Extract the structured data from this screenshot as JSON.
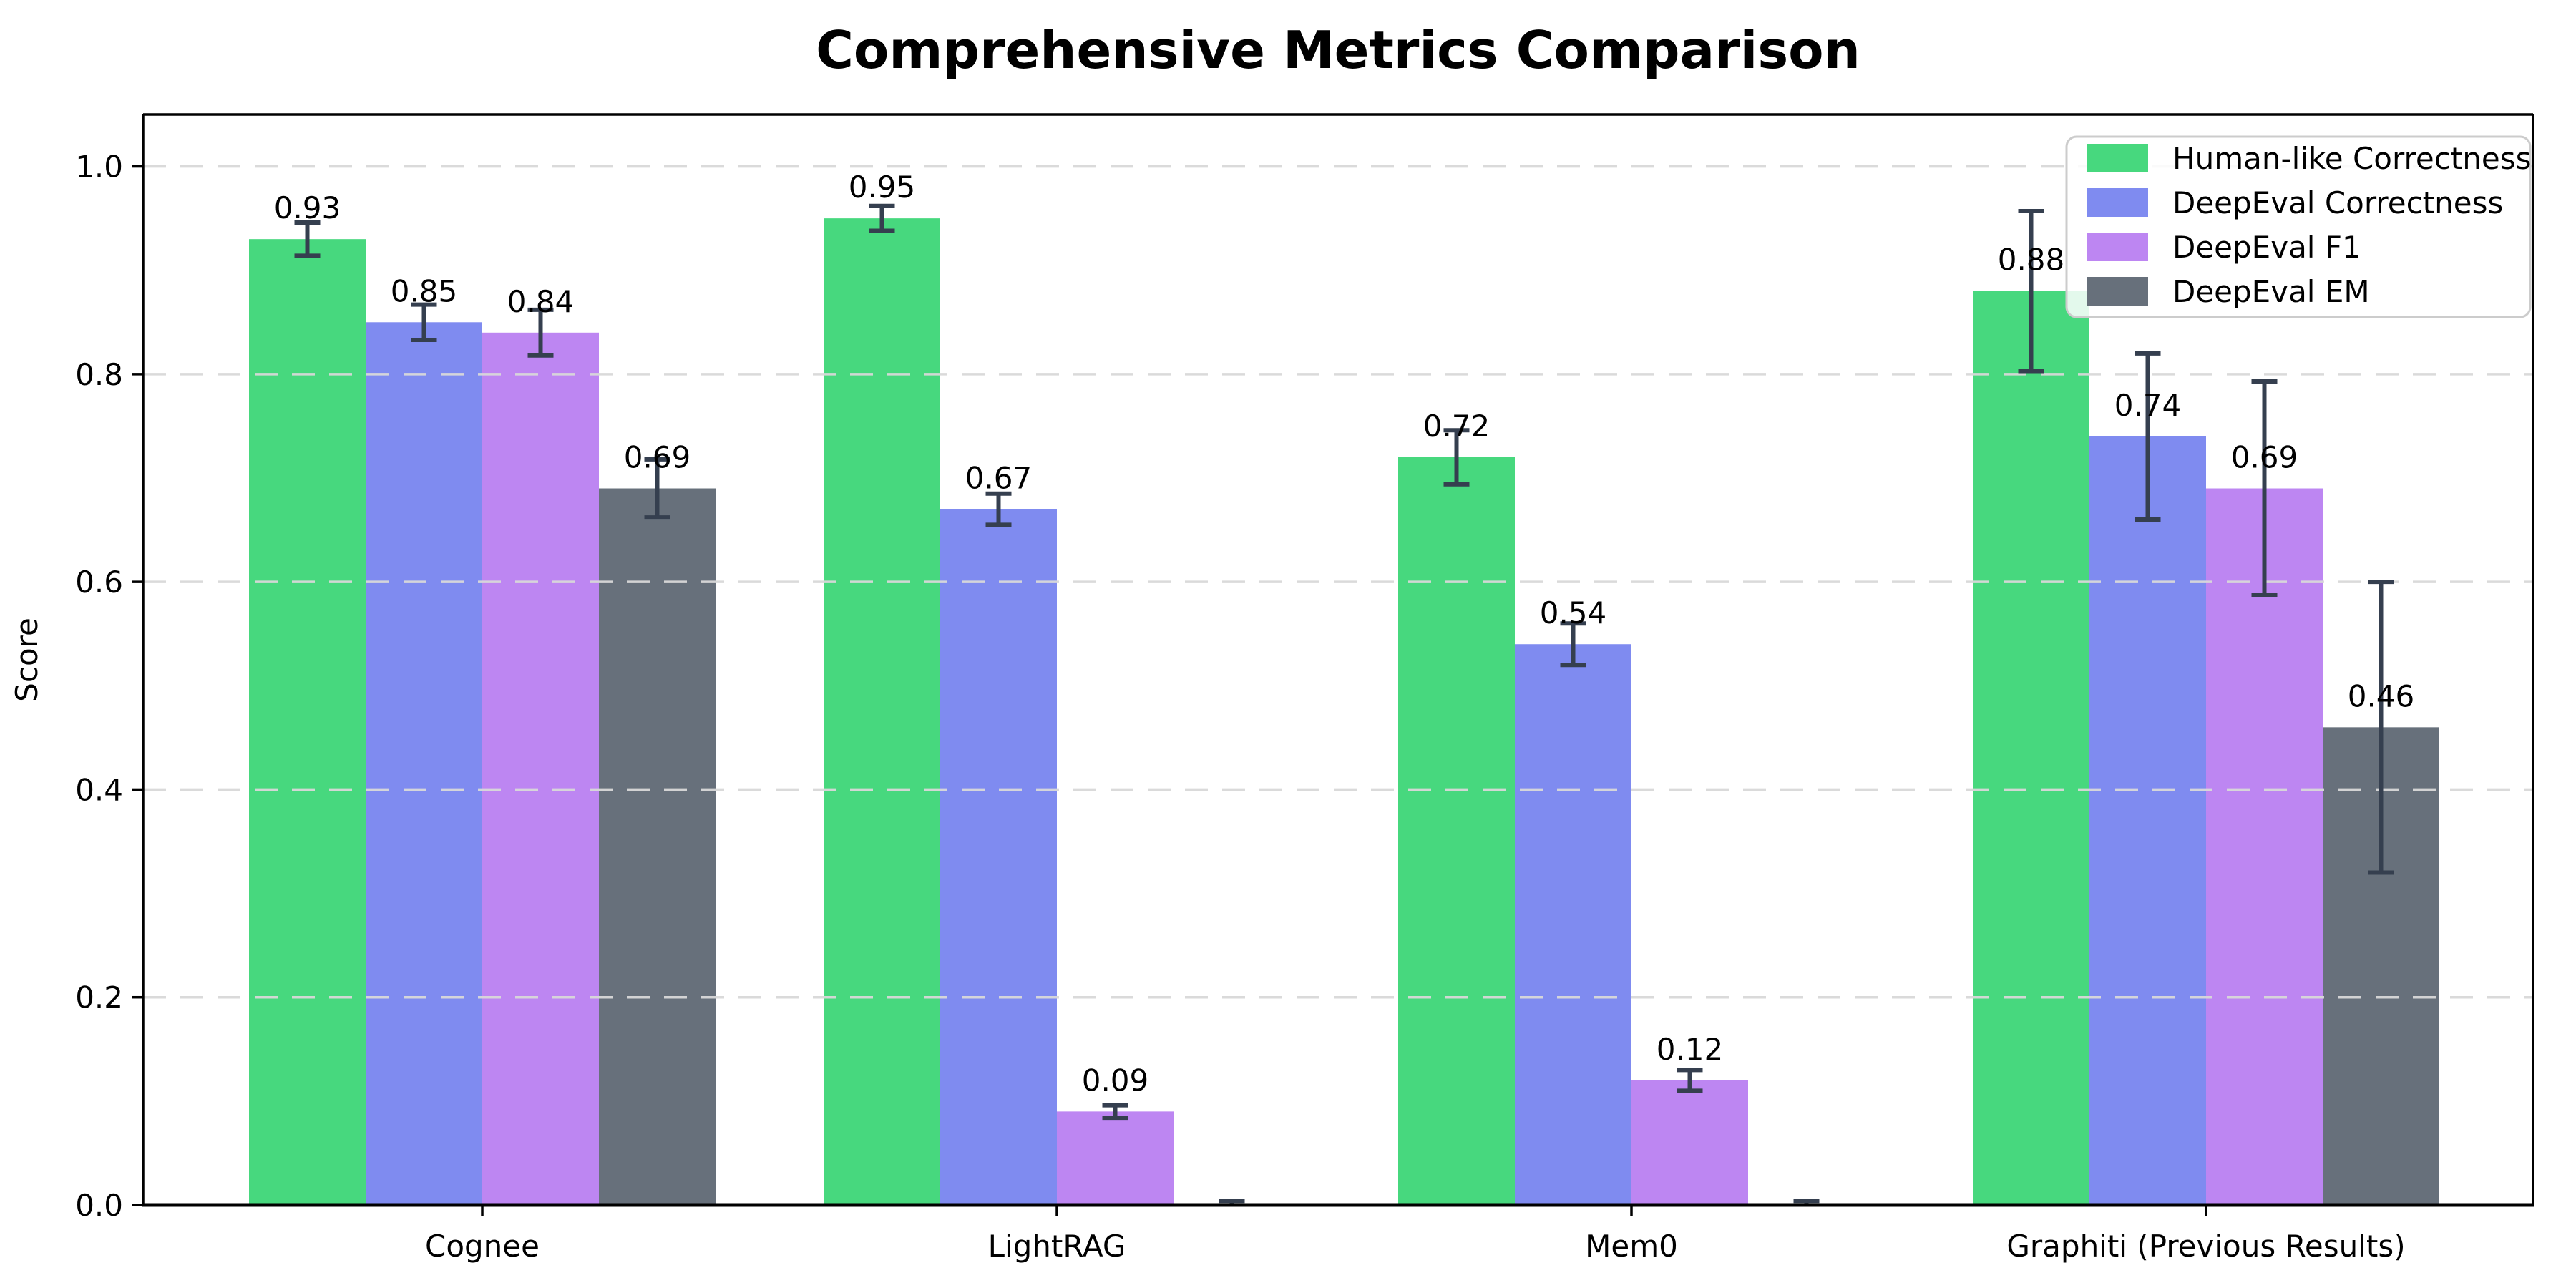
{
  "chart_data": {
    "type": "bar",
    "title": "Comprehensive Metrics Comparison",
    "ylabel": "Score",
    "xlabel": "",
    "categories": [
      "Cognee",
      "LightRAG",
      "Mem0",
      "Graphiti (Previous Results)"
    ],
    "series": [
      {
        "name": "Human-like Correctness",
        "color": "#47d87e",
        "values": [
          0.93,
          0.95,
          0.72,
          0.88
        ],
        "errors": [
          0.016,
          0.012,
          0.026,
          0.077
        ],
        "labels": [
          "0.93",
          "0.95",
          "0.72",
          "0.88"
        ]
      },
      {
        "name": "DeepEval Correctness",
        "color": "#7f8bf0",
        "values": [
          0.85,
          0.67,
          0.54,
          0.74
        ],
        "errors": [
          0.017,
          0.015,
          0.02,
          0.08
        ],
        "labels": [
          "0.85",
          "0.67",
          "0.54",
          "0.74"
        ]
      },
      {
        "name": "DeepEval F1",
        "color": "#bd86f2",
        "values": [
          0.84,
          0.09,
          0.12,
          0.69
        ],
        "errors": [
          0.022,
          0.006,
          0.01,
          0.103
        ],
        "labels": [
          "0.84",
          "0.09",
          "0.12",
          "0.69"
        ]
      },
      {
        "name": "DeepEval EM",
        "color": "#67707b",
        "values": [
          0.69,
          0.0,
          0.0,
          0.46
        ],
        "errors": [
          0.028,
          0.004,
          0.004,
          0.14
        ],
        "labels": [
          "0.69",
          "",
          "",
          "0.46"
        ]
      }
    ],
    "yticks": [
      0.0,
      0.2,
      0.4,
      0.6,
      0.8,
      1.0
    ],
    "ytick_labels": [
      "0.0",
      "0.2",
      "0.4",
      "0.6",
      "0.8",
      "1.0"
    ],
    "ylim": [
      0,
      1.05
    ],
    "grid": "horizontal dashed, drawn over bars",
    "legend_position": "upper right",
    "colors": {
      "errorbar": "#353f4f",
      "gridline": "#d9d9d9",
      "axis": "#000000",
      "legend_border": "#cccccc"
    }
  }
}
